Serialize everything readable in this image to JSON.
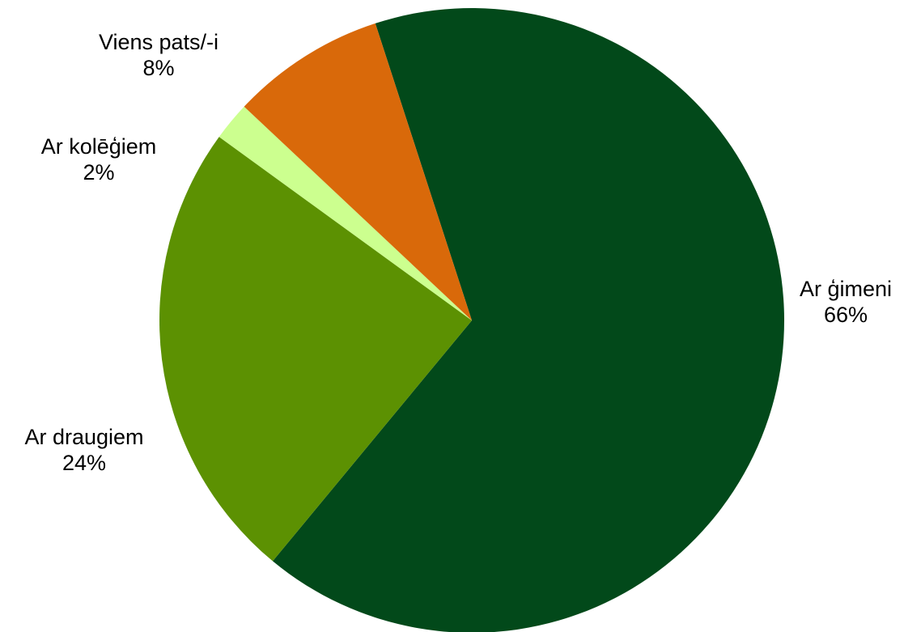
{
  "chart_data": {
    "type": "pie",
    "title": "",
    "slices": [
      {
        "label": "Ar ģimeni",
        "value": 66,
        "value_label": "66%",
        "color": "#02491a"
      },
      {
        "label": "Ar  draugiem",
        "value": 24,
        "value_label": "24%",
        "color": "#5c9102"
      },
      {
        "label": "Ar kolēģiem",
        "value": 2,
        "value_label": "2%",
        "color": "#ccff8f"
      },
      {
        "label": "Viens pats/-i",
        "value": 8,
        "value_label": "8%",
        "color": "#d9690a"
      }
    ],
    "legend": "none",
    "data_labels": "outside, category name and percentage"
  }
}
